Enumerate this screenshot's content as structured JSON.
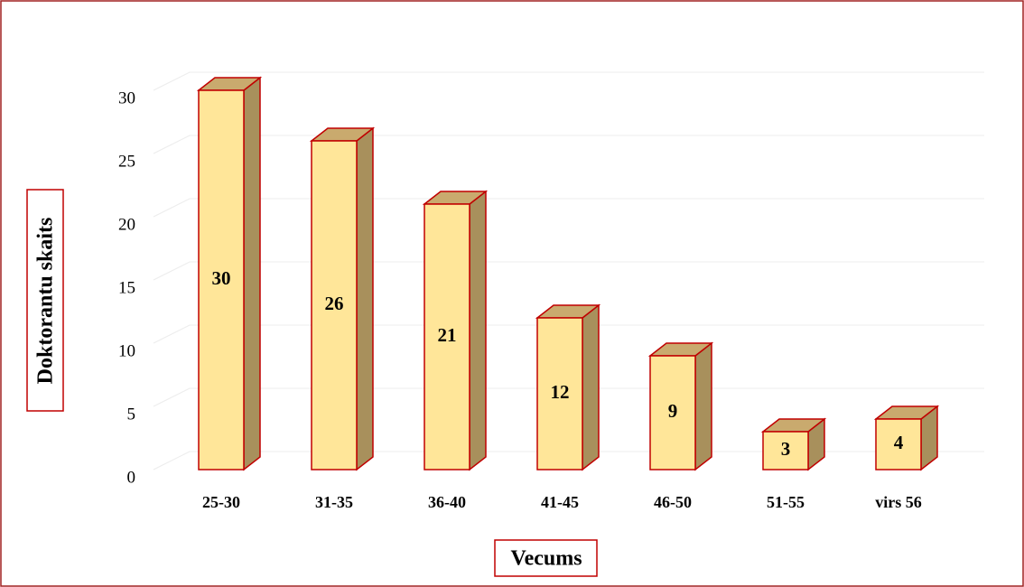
{
  "chart_data": {
    "type": "bar3d",
    "x_label": "Vecums",
    "y_label": "Doktorantu skaits",
    "categories": [
      "25-30",
      "31-35",
      "36-40",
      "41-45",
      "46-50",
      "51-55",
      "virs 56"
    ],
    "values": [
      30,
      26,
      21,
      12,
      9,
      3,
      4
    ],
    "ylim": [
      0,
      30
    ],
    "yticks": [
      0,
      5,
      10,
      15,
      20,
      25,
      30
    ],
    "grid": true,
    "color": "#ffe699",
    "side_color": "#a8905c",
    "top_color": "#c9aa6e",
    "edge_color": "#c00000"
  }
}
